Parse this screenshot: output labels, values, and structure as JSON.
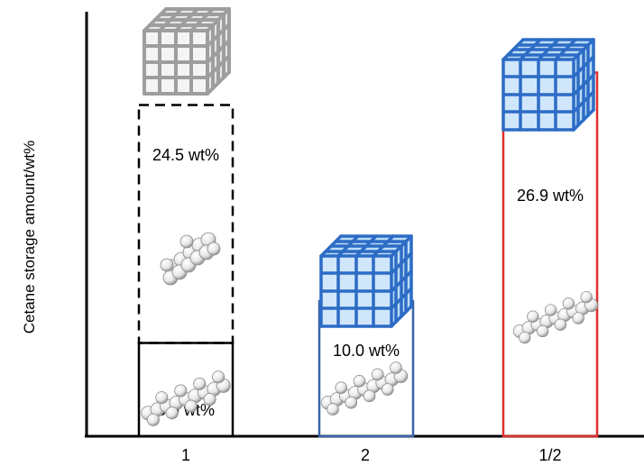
{
  "chart_data": {
    "type": "bar",
    "title": "",
    "xlabel": "",
    "ylabel": "Cetane storage amount/wt%",
    "categories": [
      "1",
      "2",
      "1/2"
    ],
    "series": [
      {
        "values": [
          6.9,
          10.0,
          26.9
        ],
        "labels": [
          "6.9 wt%",
          "10.0 wt%",
          "26.9 wt%"
        ],
        "colors": [
          "#000000",
          "#3a64a8",
          "#e0302c"
        ]
      }
    ],
    "annotations": [
      {
        "category": "1",
        "value": 24.5,
        "label": "24.5 wt%",
        "style": "dashed"
      }
    ],
    "ylim": [
      0,
      32
    ],
    "grid": false,
    "legend": "none",
    "icons": [
      "grey-framework-cube-icon",
      "blue-framework-cube-icon",
      "cetane-molecule-icon"
    ]
  }
}
